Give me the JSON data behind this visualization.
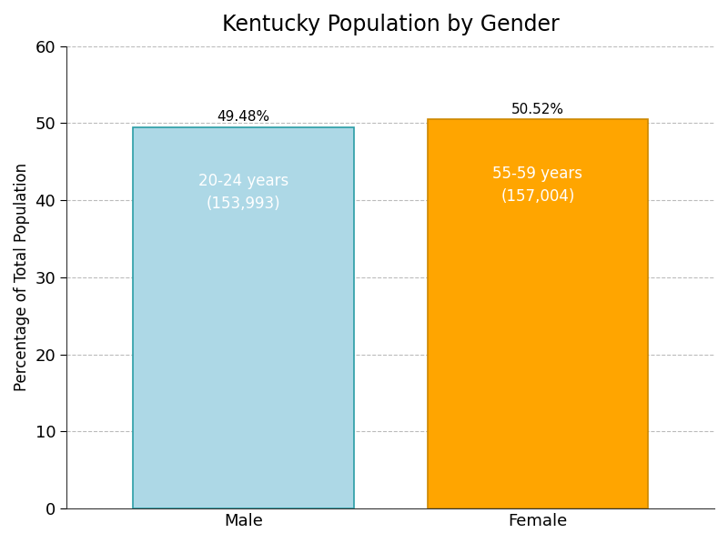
{
  "title": "Kentucky Population by Gender",
  "categories": [
    "Male",
    "Female"
  ],
  "values": [
    49.48,
    50.52
  ],
  "bar_colors": [
    "#add8e6",
    "#FFA500"
  ],
  "bar_edge_colors": [
    "#2a9da5",
    "#cc8800"
  ],
  "ylabel": "Percentage of Total Population",
  "ylim": [
    0,
    60
  ],
  "yticks": [
    0,
    10,
    20,
    30,
    40,
    50,
    60
  ],
  "bar_labels": [
    "49.48%",
    "50.52%"
  ],
  "inner_labels": [
    "20-24 years\n(153,993)",
    "55-59 years\n(157,004)"
  ],
  "inner_label_color": "white",
  "grid_color": "#aaaaaa",
  "title_fontsize": 17,
  "label_fontsize": 12,
  "tick_fontsize": 13,
  "bar_label_fontsize": 11,
  "inner_label_fontsize": 12,
  "bar_width": 0.75,
  "x_positions": [
    1,
    2
  ],
  "xlim": [
    0.4,
    2.6
  ],
  "background_color": "#ffffff"
}
